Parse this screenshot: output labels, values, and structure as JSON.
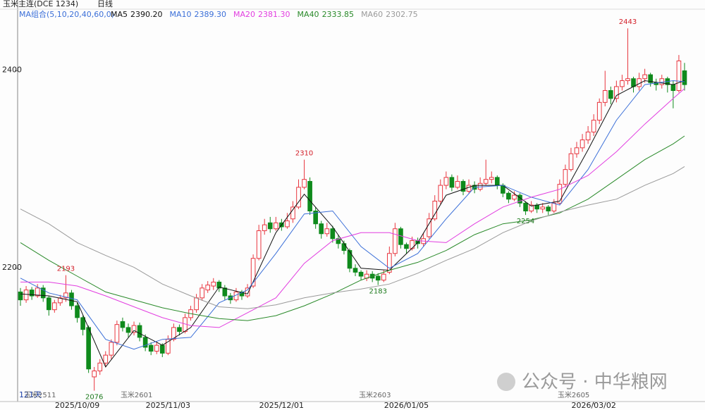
{
  "chart_data": {
    "type": "candlestick",
    "title": "玉米主连(DCE 1234)",
    "period": "日线",
    "ma_group": "MA组合(5,10,20,40,60,0)",
    "days_label": "121天",
    "watermark": "公众号 · 中华粮网",
    "up_color": "#e8353e",
    "down_color": "#0f8a1c",
    "ylim": [
      2065,
      2461
    ],
    "yticks": [
      2200,
      2400
    ],
    "categories": [
      null,
      null,
      null,
      null,
      null,
      null,
      null,
      null,
      null,
      null,
      "2025/10/09",
      null,
      null,
      null,
      null,
      null,
      null,
      null,
      null,
      null,
      null,
      null,
      null,
      null,
      null,
      null,
      "2025/11/03",
      null,
      null,
      null,
      null,
      null,
      null,
      null,
      null,
      null,
      null,
      null,
      null,
      null,
      null,
      null,
      null,
      null,
      null,
      null,
      "2025/12/01",
      null,
      null,
      null,
      null,
      null,
      null,
      null,
      null,
      null,
      null,
      null,
      null,
      null,
      null,
      null,
      null,
      null,
      null,
      null,
      null,
      null,
      "2026/01/05",
      null,
      null,
      null,
      null,
      null,
      null,
      null,
      null,
      null,
      null,
      null,
      null,
      null,
      null,
      null,
      null,
      null,
      null,
      null,
      null,
      null,
      null,
      null,
      null,
      null,
      null,
      null,
      null,
      null,
      null,
      null,
      null,
      "2026/03/02",
      null,
      null,
      null,
      null,
      null,
      null,
      null,
      null,
      null,
      null,
      null,
      null,
      null,
      null,
      null,
      null
    ],
    "ohlc": [
      [
        2176,
        2180,
        2162,
        2168
      ],
      [
        2168,
        2182,
        2165,
        2178
      ],
      [
        2178,
        2181,
        2168,
        2172
      ],
      [
        2172,
        2184,
        2170,
        2180
      ],
      [
        2180,
        2183,
        2166,
        2170
      ],
      [
        2170,
        2172,
        2152,
        2158
      ],
      [
        2158,
        2168,
        2155,
        2165
      ],
      [
        2165,
        2173,
        2162,
        2170
      ],
      [
        2170,
        2193,
        2166,
        2175
      ],
      [
        2175,
        2178,
        2158,
        2162
      ],
      [
        2162,
        2165,
        2145,
        2150
      ],
      [
        2150,
        2152,
        2132,
        2138
      ],
      [
        2140,
        2142,
        2094,
        2098
      ],
      [
        2090,
        2100,
        2076,
        2096
      ],
      [
        2096,
        2108,
        2092,
        2104
      ],
      [
        2104,
        2116,
        2100,
        2112
      ],
      [
        2112,
        2128,
        2108,
        2125
      ],
      [
        2125,
        2147,
        2122,
        2143
      ],
      [
        2146,
        2150,
        2136,
        2140
      ],
      [
        2140,
        2144,
        2130,
        2135
      ],
      [
        2135,
        2146,
        2132,
        2142
      ],
      [
        2142,
        2145,
        2126,
        2130
      ],
      [
        2130,
        2133,
        2116,
        2120
      ],
      [
        2122,
        2125,
        2112,
        2116
      ],
      [
        2116,
        2126,
        2113,
        2122
      ],
      [
        2122,
        2124,
        2110,
        2114
      ],
      [
        2114,
        2132,
        2112,
        2128
      ],
      [
        2128,
        2144,
        2126,
        2140
      ],
      [
        2140,
        2143,
        2132,
        2136
      ],
      [
        2136,
        2154,
        2134,
        2150
      ],
      [
        2150,
        2162,
        2147,
        2158
      ],
      [
        2158,
        2174,
        2155,
        2170
      ],
      [
        2170,
        2184,
        2167,
        2180
      ],
      [
        2178,
        2187,
        2175,
        2183
      ],
      [
        2182,
        2190,
        2178,
        2186
      ],
      [
        2186,
        2188,
        2176,
        2180
      ],
      [
        2180,
        2183,
        2168,
        2172
      ],
      [
        2172,
        2175,
        2164,
        2168
      ],
      [
        2168,
        2180,
        2166,
        2176
      ],
      [
        2176,
        2178,
        2168,
        2172
      ],
      [
        2172,
        2184,
        2170,
        2180
      ],
      [
        2182,
        2214,
        2180,
        2210
      ],
      [
        2210,
        2244,
        2208,
        2238
      ],
      [
        2238,
        2250,
        2234,
        2244
      ],
      [
        2246,
        2252,
        2236,
        2240
      ],
      [
        2240,
        2252,
        2238,
        2246
      ],
      [
        2246,
        2250,
        2238,
        2242
      ],
      [
        2242,
        2256,
        2240,
        2248
      ],
      [
        2250,
        2268,
        2246,
        2262
      ],
      [
        2262,
        2290,
        2260,
        2282
      ],
      [
        2282,
        2310,
        2280,
        2290
      ],
      [
        2288,
        2292,
        2254,
        2258
      ],
      [
        2258,
        2262,
        2240,
        2245
      ],
      [
        2245,
        2248,
        2230,
        2235
      ],
      [
        2235,
        2246,
        2232,
        2240
      ],
      [
        2240,
        2243,
        2226,
        2230
      ],
      [
        2230,
        2234,
        2220,
        2225
      ],
      [
        2225,
        2228,
        2214,
        2218
      ],
      [
        2218,
        2220,
        2196,
        2200
      ],
      [
        2200,
        2204,
        2192,
        2196
      ],
      [
        2196,
        2198,
        2188,
        2192
      ],
      [
        2190,
        2198,
        2187,
        2194
      ],
      [
        2194,
        2197,
        2186,
        2190
      ],
      [
        2192,
        2195,
        2183,
        2188
      ],
      [
        2188,
        2198,
        2186,
        2194
      ],
      [
        2196,
        2222,
        2194,
        2215
      ],
      [
        2215,
        2246,
        2212,
        2240
      ],
      [
        2240,
        2242,
        2220,
        2224
      ],
      [
        2224,
        2226,
        2215,
        2220
      ],
      [
        2220,
        2232,
        2218,
        2228
      ],
      [
        2228,
        2231,
        2220,
        2225
      ],
      [
        2225,
        2236,
        2222,
        2230
      ],
      [
        2232,
        2256,
        2230,
        2250
      ],
      [
        2250,
        2274,
        2248,
        2268
      ],
      [
        2268,
        2290,
        2265,
        2284
      ],
      [
        2284,
        2298,
        2280,
        2292
      ],
      [
        2292,
        2295,
        2278,
        2282
      ],
      [
        2282,
        2294,
        2280,
        2288
      ],
      [
        2288,
        2290,
        2274,
        2278
      ],
      [
        2278,
        2290,
        2276,
        2284
      ],
      [
        2284,
        2288,
        2276,
        2280
      ],
      [
        2280,
        2292,
        2278,
        2286
      ],
      [
        2286,
        2310,
        2284,
        2290
      ],
      [
        2290,
        2298,
        2286,
        2292
      ],
      [
        2292,
        2294,
        2280,
        2284
      ],
      [
        2284,
        2286,
        2272,
        2276
      ],
      [
        2276,
        2278,
        2266,
        2270
      ],
      [
        2270,
        2278,
        2268,
        2274
      ],
      [
        2274,
        2276,
        2262,
        2266
      ],
      [
        2266,
        2268,
        2254,
        2258
      ],
      [
        2258,
        2268,
        2256,
        2264
      ],
      [
        2264,
        2266,
        2256,
        2260
      ],
      [
        2260,
        2266,
        2256,
        2262
      ],
      [
        2262,
        2264,
        2254,
        2258
      ],
      [
        2258,
        2270,
        2256,
        2266
      ],
      [
        2266,
        2290,
        2264,
        2285
      ],
      [
        2285,
        2305,
        2282,
        2300
      ],
      [
        2300,
        2322,
        2298,
        2316
      ],
      [
        2316,
        2328,
        2312,
        2322
      ],
      [
        2322,
        2336,
        2318,
        2330
      ],
      [
        2330,
        2344,
        2326,
        2338
      ],
      [
        2338,
        2356,
        2334,
        2350
      ],
      [
        2350,
        2372,
        2346,
        2368
      ],
      [
        2368,
        2400,
        2364,
        2380
      ],
      [
        2380,
        2384,
        2366,
        2372
      ],
      [
        2372,
        2390,
        2368,
        2384
      ],
      [
        2384,
        2396,
        2380,
        2390
      ],
      [
        2390,
        2443,
        2386,
        2392
      ],
      [
        2392,
        2394,
        2378,
        2384
      ],
      [
        2384,
        2398,
        2380,
        2392
      ],
      [
        2392,
        2402,
        2388,
        2396
      ],
      [
        2396,
        2398,
        2384,
        2388
      ],
      [
        2388,
        2392,
        2380,
        2386
      ],
      [
        2386,
        2396,
        2382,
        2392
      ],
      [
        2392,
        2394,
        2378,
        2386
      ],
      [
        2386,
        2390,
        2362,
        2380
      ],
      [
        2380,
        2416,
        2378,
        2410
      ],
      [
        2400,
        2408,
        2380,
        2386
      ]
    ],
    "series": [
      {
        "name": "MA5",
        "color": "#111111",
        "last": {
          "value": 2390.2,
          "label": "2390.20"
        },
        "x": [
          0,
          5,
          10,
          15,
          20,
          25,
          30,
          35,
          40,
          45,
          50,
          55,
          60,
          65,
          70,
          75,
          80,
          85,
          90,
          95,
          100,
          105,
          110,
          115,
          117
        ],
        "values": [
          2174,
          2172,
          2166,
          2100,
          2137,
          2122,
          2140,
          2181,
          2174,
          2236,
          2275,
          2242,
          2200,
          2198,
          2226,
          2274,
          2284,
          2284,
          2263,
          2268,
          2320,
          2375,
          2390,
          2386,
          2390
        ]
      },
      {
        "name": "MA10",
        "color": "#3b6fd8",
        "last": {
          "value": 2389.3,
          "label": "2389.30"
        },
        "x": [
          0,
          5,
          10,
          15,
          20,
          25,
          30,
          35,
          40,
          45,
          50,
          55,
          60,
          65,
          70,
          75,
          80,
          85,
          90,
          95,
          100,
          105,
          110,
          115,
          117
        ],
        "values": [
          2190,
          2175,
          2168,
          2128,
          2118,
          2128,
          2130,
          2165,
          2178,
          2215,
          2255,
          2258,
          2222,
          2200,
          2215,
          2250,
          2282,
          2284,
          2272,
          2264,
          2300,
          2350,
          2386,
          2390,
          2389
        ]
      },
      {
        "name": "MA20",
        "color": "#e23ee0",
        "last": {
          "value": 2381.3,
          "label": "2381.30"
        },
        "x": [
          0,
          5,
          10,
          15,
          20,
          25,
          30,
          35,
          40,
          45,
          50,
          55,
          60,
          65,
          70,
          75,
          80,
          85,
          90,
          95,
          100,
          105,
          110,
          115,
          117
        ],
        "values": [
          2186,
          2186,
          2182,
          2172,
          2161,
          2150,
          2142,
          2140,
          2155,
          2170,
          2205,
          2228,
          2236,
          2236,
          2228,
          2226,
          2245,
          2262,
          2272,
          2280,
          2294,
          2318,
          2346,
          2372,
          2382
        ]
      },
      {
        "name": "MA40",
        "color": "#2a8a2a",
        "last": {
          "value": 2333.85,
          "label": "2333.85"
        },
        "x": [
          0,
          5,
          10,
          15,
          20,
          25,
          30,
          35,
          40,
          45,
          50,
          55,
          60,
          65,
          70,
          75,
          80,
          85,
          90,
          95,
          100,
          105,
          110,
          115,
          117
        ],
        "values": [
          2226,
          2208,
          2192,
          2176,
          2168,
          2160,
          2154,
          2149,
          2147,
          2152,
          2162,
          2174,
          2188,
          2198,
          2206,
          2218,
          2234,
          2245,
          2249,
          2256,
          2270,
          2290,
          2310,
          2326,
          2334
        ]
      },
      {
        "name": "MA60",
        "color": "#9a9a9a",
        "last": {
          "value": 2302.75,
          "label": "2302.75"
        },
        "x": [
          0,
          5,
          10,
          15,
          20,
          25,
          30,
          35,
          40,
          45,
          50,
          55,
          60,
          65,
          70,
          75,
          80,
          85,
          90,
          95,
          100,
          105,
          110,
          115,
          117
        ],
        "values": [
          2260,
          2245,
          2226,
          2213,
          2201,
          2184,
          2172,
          2161,
          2159,
          2163,
          2170,
          2175,
          2179,
          2184,
          2195,
          2208,
          2220,
          2236,
          2248,
          2257,
          2264,
          2270,
          2284,
          2296,
          2303
        ]
      }
    ],
    "annotations": [
      {
        "index": 8,
        "kind": "high",
        "value": 2193
      },
      {
        "index": 13,
        "kind": "low",
        "value": 2076
      },
      {
        "index": 50,
        "kind": "high",
        "value": 2310
      },
      {
        "index": 63,
        "kind": "low",
        "value": 2183
      },
      {
        "index": 89,
        "kind": "low",
        "value": 2254
      },
      {
        "index": 107,
        "kind": "high",
        "value": 2443
      }
    ],
    "contracts": [
      {
        "index": 1,
        "label": "玉米2511"
      },
      {
        "index": 18,
        "label": "玉米2601"
      },
      {
        "index": 60,
        "label": "玉米2603"
      },
      {
        "index": 95,
        "label": "玉米2605"
      }
    ]
  }
}
